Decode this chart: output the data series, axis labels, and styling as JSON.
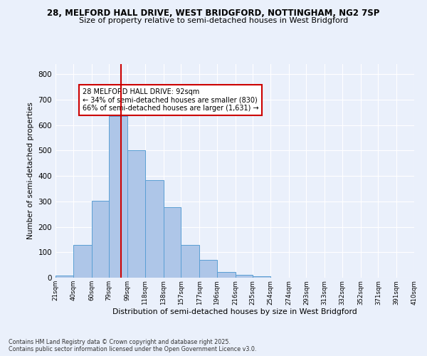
{
  "title_line1": "28, MELFORD HALL DRIVE, WEST BRIDGFORD, NOTTINGHAM, NG2 7SP",
  "title_line2": "Size of property relative to semi-detached houses in West Bridgford",
  "xlabel": "Distribution of semi-detached houses by size in West Bridgford",
  "ylabel": "Number of semi-detached properties",
  "bar_color": "#aec6e8",
  "bar_edge_color": "#5a9fd4",
  "background_color": "#eaf0fb",
  "grid_color": "#ffffff",
  "bins": [
    21,
    40,
    60,
    79,
    99,
    118,
    138,
    157,
    177,
    196,
    216,
    235,
    254,
    274,
    293,
    313,
    332,
    352,
    371,
    391,
    410
  ],
  "bin_labels": [
    "21sqm",
    "40sqm",
    "60sqm",
    "79sqm",
    "99sqm",
    "118sqm",
    "138sqm",
    "157sqm",
    "177sqm",
    "196sqm",
    "216sqm",
    "235sqm",
    "254sqm",
    "274sqm",
    "293sqm",
    "313sqm",
    "332sqm",
    "352sqm",
    "371sqm",
    "391sqm",
    "410sqm"
  ],
  "counts": [
    8,
    128,
    302,
    635,
    500,
    383,
    278,
    130,
    70,
    22,
    11,
    7,
    0,
    0,
    0,
    0,
    0,
    0,
    0,
    0
  ],
  "property_size": 92,
  "property_line_color": "#cc0000",
  "property_label": "28 MELFORD HALL DRIVE: 92sqm",
  "pct_smaller": 34,
  "pct_larger": 66,
  "count_smaller": 830,
  "count_larger": 1631,
  "annotation_box_edge": "#cc0000",
  "annotation_box_bg": "#ffffff",
  "ylim": [
    0,
    840
  ],
  "yticks": [
    0,
    100,
    200,
    300,
    400,
    500,
    600,
    700,
    800
  ],
  "footer_line1": "Contains HM Land Registry data © Crown copyright and database right 2025.",
  "footer_line2": "Contains public sector information licensed under the Open Government Licence v3.0."
}
